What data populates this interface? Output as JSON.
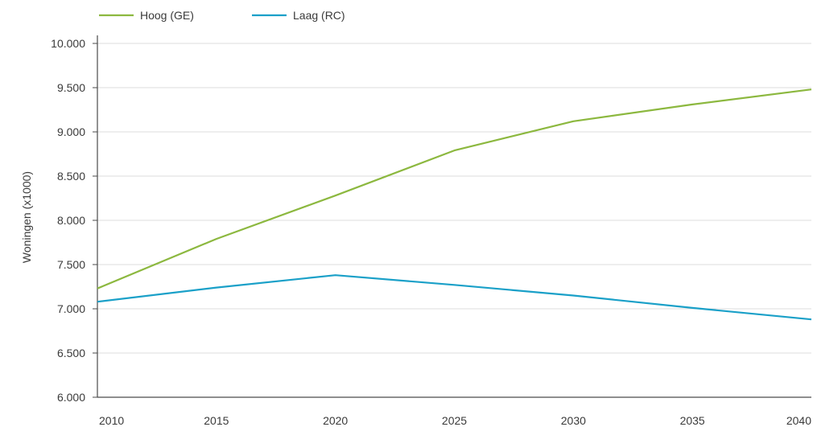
{
  "chart_data": {
    "type": "line",
    "title": "",
    "xlabel": "",
    "ylabel": "Woningen (x1000)",
    "x": [
      2010,
      2015,
      2020,
      2025,
      2030,
      2035,
      2040
    ],
    "x_tick_labels": [
      "2010",
      "2015",
      "2020",
      "2025",
      "2030",
      "2035",
      "2040"
    ],
    "y_tick_labels": [
      "6.000",
      "6.500",
      "7.000",
      "7.500",
      "8.000",
      "8.500",
      "9.000",
      "9.500",
      "10.000"
    ],
    "y_ticks": [
      6000,
      6500,
      7000,
      7500,
      8000,
      8500,
      9000,
      9500,
      10000
    ],
    "xlim": [
      2010,
      2040
    ],
    "ylim": [
      6000,
      10000
    ],
    "grid": "horizontal",
    "legend_position": "top-left",
    "series": [
      {
        "name": "Hoog (GE)",
        "color": "#8cb83f",
        "values": [
          7230,
          7790,
          8280,
          8790,
          9120,
          9310,
          9480
        ]
      },
      {
        "name": "Laag (RC)",
        "color": "#1aa0c8",
        "values": [
          7080,
          7240,
          7380,
          7270,
          7150,
          7010,
          6880
        ]
      }
    ]
  }
}
